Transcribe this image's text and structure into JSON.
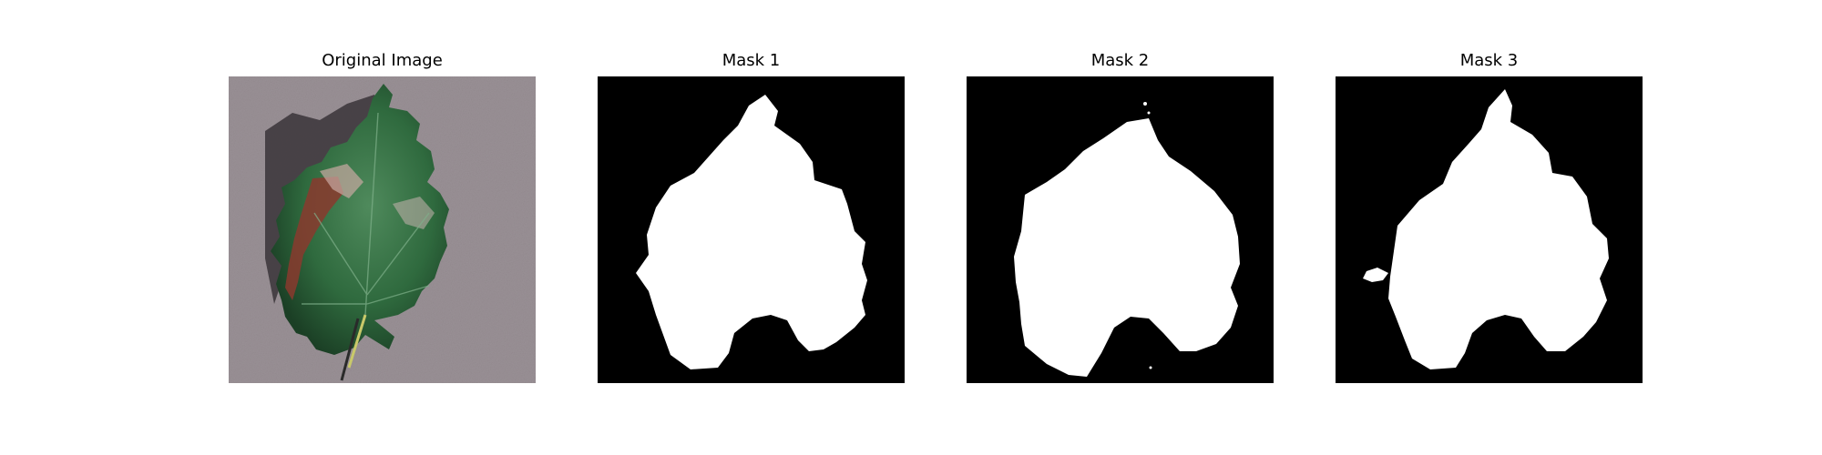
{
  "figure": {
    "panels": [
      {
        "title": "Original Image",
        "kind": "photo"
      },
      {
        "title": "Mask 1",
        "kind": "mask"
      },
      {
        "title": "Mask 2",
        "kind": "mask"
      },
      {
        "title": "Mask 3",
        "kind": "mask"
      }
    ]
  },
  "colors": {
    "background": "#ffffff",
    "mask_background": "#000000",
    "mask_foreground": "#ffffff",
    "photo_backdrop": "#9a9196",
    "leaf_dark": "#1f4a2c",
    "leaf_mid": "#2f6a3e",
    "lesion": "#8a3a2e",
    "stem": "#c9c96a",
    "shadow": "#3a3438"
  }
}
